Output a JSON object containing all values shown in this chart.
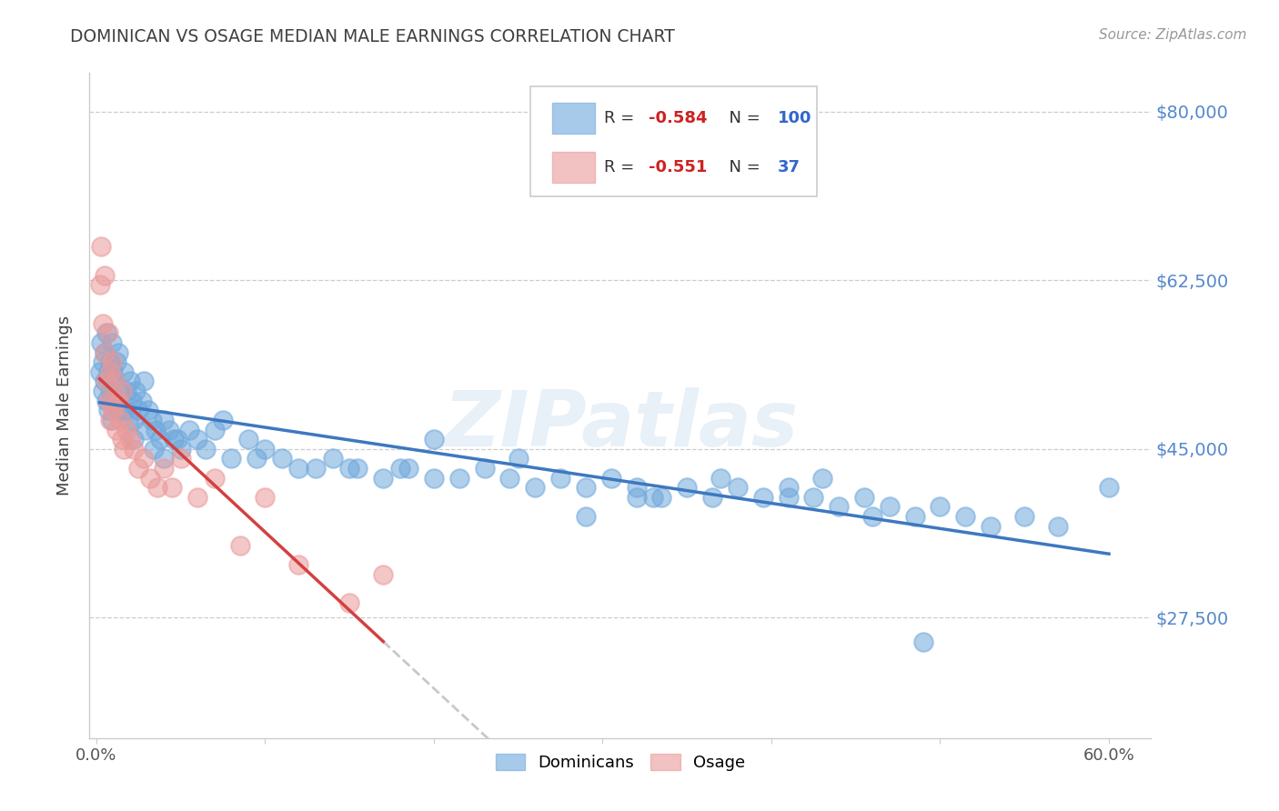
{
  "title": "DOMINICAN VS OSAGE MEDIAN MALE EARNINGS CORRELATION CHART",
  "source": "Source: ZipAtlas.com",
  "ylabel": "Median Male Earnings",
  "ytick_labels": [
    "$27,500",
    "$45,000",
    "$62,500",
    "$80,000"
  ],
  "ytick_values": [
    27500,
    45000,
    62500,
    80000
  ],
  "ymin": 15000,
  "ymax": 84000,
  "xmin": -0.004,
  "xmax": 0.625,
  "watermark": "ZIPatlas",
  "legend_blue_r": "-0.584",
  "legend_blue_n": "100",
  "legend_pink_r": "-0.551",
  "legend_pink_n": "37",
  "blue_color": "#6fa8dc",
  "pink_color": "#ea9999",
  "line_blue": "#3d78c0",
  "line_pink": "#d44040",
  "line_dashed_color": "#c8c8c8",
  "axis_color": "#cccccc",
  "title_color": "#404040",
  "source_color": "#999999",
  "ytick_color": "#5588cc",
  "xtick_color": "#555555",
  "legend_r_color": "#cc2222",
  "legend_n_color": "#3366cc",
  "legend_text_color": "#333333",
  "blue_x": [
    0.002,
    0.003,
    0.004,
    0.004,
    0.005,
    0.005,
    0.006,
    0.006,
    0.007,
    0.007,
    0.008,
    0.008,
    0.009,
    0.009,
    0.01,
    0.01,
    0.011,
    0.012,
    0.013,
    0.013,
    0.014,
    0.015,
    0.016,
    0.017,
    0.018,
    0.019,
    0.02,
    0.021,
    0.022,
    0.023,
    0.025,
    0.027,
    0.029,
    0.031,
    0.033,
    0.035,
    0.038,
    0.04,
    0.043,
    0.046,
    0.05,
    0.055,
    0.06,
    0.065,
    0.07,
    0.08,
    0.09,
    0.1,
    0.11,
    0.12,
    0.13,
    0.14,
    0.155,
    0.17,
    0.185,
    0.2,
    0.215,
    0.23,
    0.245,
    0.26,
    0.275,
    0.29,
    0.305,
    0.32,
    0.335,
    0.35,
    0.365,
    0.38,
    0.395,
    0.41,
    0.425,
    0.44,
    0.455,
    0.47,
    0.485,
    0.5,
    0.515,
    0.53,
    0.55,
    0.57,
    0.022,
    0.028,
    0.034,
    0.04,
    0.048,
    0.075,
    0.095,
    0.15,
    0.2,
    0.29,
    0.33,
    0.37,
    0.25,
    0.18,
    0.43,
    0.32,
    0.46,
    0.41,
    0.49,
    0.6
  ],
  "blue_y": [
    53000,
    56000,
    51000,
    54000,
    52000,
    55000,
    50000,
    57000,
    53000,
    49000,
    54000,
    51000,
    56000,
    48000,
    53000,
    50000,
    52000,
    54000,
    49000,
    55000,
    51000,
    50000,
    53000,
    49000,
    51000,
    48000,
    52000,
    50000,
    48000,
    51000,
    49000,
    50000,
    47000,
    49000,
    48000,
    47000,
    46000,
    48000,
    47000,
    46000,
    45000,
    47000,
    46000,
    45000,
    47000,
    44000,
    46000,
    45000,
    44000,
    43000,
    43000,
    44000,
    43000,
    42000,
    43000,
    42000,
    42000,
    43000,
    42000,
    41000,
    42000,
    41000,
    42000,
    41000,
    40000,
    41000,
    40000,
    41000,
    40000,
    41000,
    40000,
    39000,
    40000,
    39000,
    38000,
    39000,
    38000,
    37000,
    38000,
    37000,
    46000,
    52000,
    45000,
    44000,
    46000,
    48000,
    44000,
    43000,
    46000,
    38000,
    40000,
    42000,
    44000,
    43000,
    42000,
    40000,
    38000,
    40000,
    25000,
    41000
  ],
  "pink_x": [
    0.002,
    0.003,
    0.004,
    0.005,
    0.005,
    0.006,
    0.007,
    0.007,
    0.008,
    0.008,
    0.009,
    0.01,
    0.011,
    0.012,
    0.013,
    0.014,
    0.015,
    0.016,
    0.018,
    0.02,
    0.022,
    0.025,
    0.028,
    0.032,
    0.036,
    0.04,
    0.045,
    0.05,
    0.06,
    0.07,
    0.085,
    0.1,
    0.12,
    0.15,
    0.17,
    0.01,
    0.015
  ],
  "pink_y": [
    62000,
    66000,
    58000,
    55000,
    63000,
    52000,
    57000,
    50000,
    53000,
    48000,
    54000,
    50000,
    52000,
    47000,
    50000,
    48000,
    51000,
    45000,
    47000,
    46000,
    45000,
    43000,
    44000,
    42000,
    41000,
    43000,
    41000,
    44000,
    40000,
    42000,
    35000,
    40000,
    33000,
    29000,
    32000,
    49000,
    46000
  ]
}
